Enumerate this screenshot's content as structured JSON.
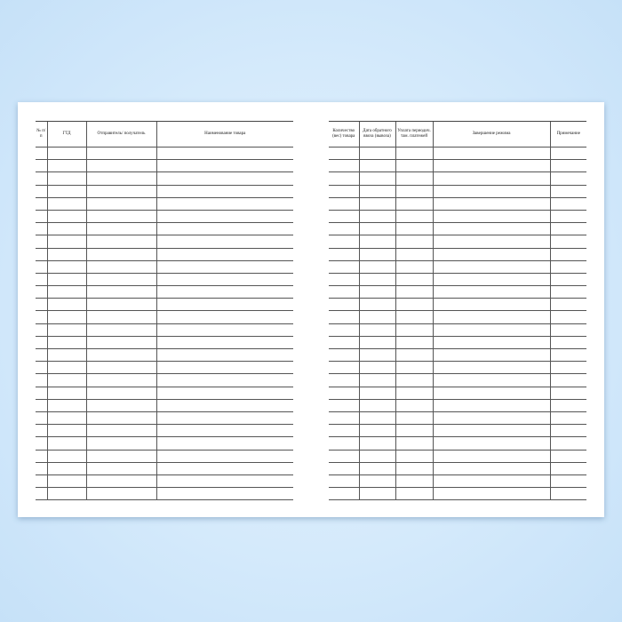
{
  "left_page": {
    "headers": [
      "№ п/п",
      "ГТД",
      "Отправитель/ получатель",
      "Наименование товара"
    ]
  },
  "right_page": {
    "headers": [
      "Количество (вес) товара",
      "Дата обратного ввоза (вывоза)",
      "Уплата периодич. там. платежей",
      "Завершение режима",
      "Примечание"
    ]
  }
}
